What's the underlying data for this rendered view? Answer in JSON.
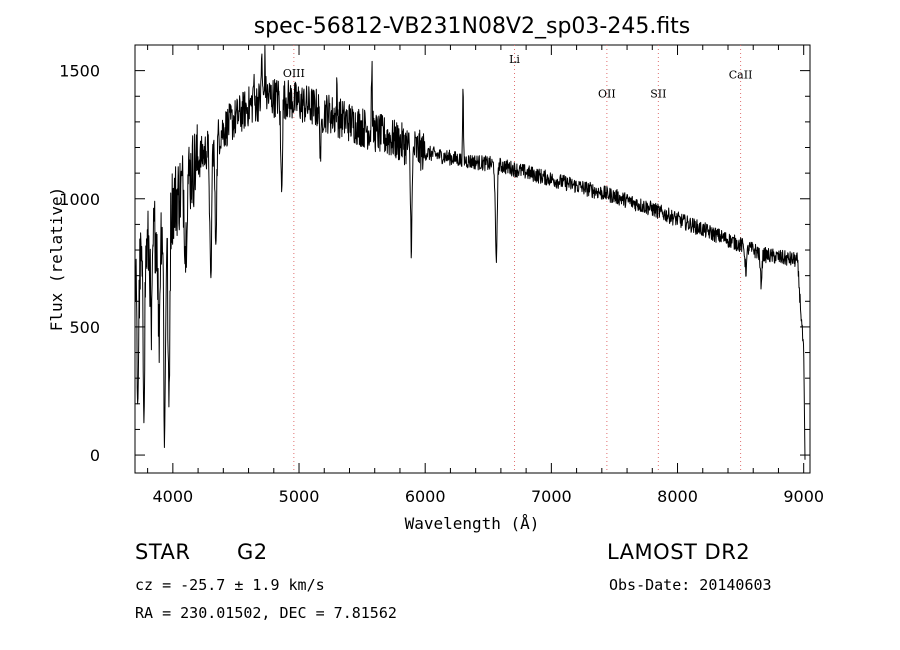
{
  "chart_data": {
    "type": "line",
    "title": "spec-56812-VB231N08V2_sp03-245.fits",
    "xlabel": "Wavelength (Å)",
    "ylabel": "Flux (relative)",
    "xlim": [
      3700,
      9050
    ],
    "ylim": [
      -70,
      1600
    ],
    "xticks": [
      4000,
      5000,
      6000,
      7000,
      8000,
      9000
    ],
    "yticks": [
      0,
      500,
      1000,
      1500
    ],
    "xticklabels": [
      "4000",
      "5000",
      "6000",
      "7000",
      "8000",
      "9000"
    ],
    "yticklabels": [
      "0",
      "500",
      "1000",
      "1500"
    ],
    "lines": [
      {
        "name": "OIII",
        "x": 4959,
        "label_y": 1475
      },
      {
        "name": "Li",
        "x": 6708,
        "label_y": 1530
      },
      {
        "name": "OII",
        "x": 7440,
        "label_y": 1395
      },
      {
        "name": "SII",
        "x": 7848,
        "label_y": 1395
      },
      {
        "name": "CaII",
        "x": 8500,
        "label_y": 1470
      }
    ],
    "continuum": [
      [
        3700,
        700
      ],
      [
        3850,
        860
      ],
      [
        4000,
        980
      ],
      [
        4200,
        1150
      ],
      [
        4400,
        1270
      ],
      [
        4600,
        1360
      ],
      [
        4750,
        1400
      ],
      [
        4900,
        1390
      ],
      [
        5100,
        1360
      ],
      [
        5400,
        1300
      ],
      [
        5700,
        1240
      ],
      [
        6000,
        1180
      ],
      [
        6300,
        1150
      ],
      [
        6600,
        1130
      ],
      [
        6900,
        1090
      ],
      [
        7200,
        1050
      ],
      [
        7500,
        1010
      ],
      [
        7800,
        960
      ],
      [
        8100,
        900
      ],
      [
        8400,
        840
      ],
      [
        8700,
        780
      ],
      [
        8950,
        760
      ],
      [
        9000,
        400
      ],
      [
        9010,
        -30
      ]
    ],
    "dips": [
      [
        3722,
        -480
      ],
      [
        3770,
        -520
      ],
      [
        3830,
        -400
      ],
      [
        3890,
        -420
      ],
      [
        3935,
        -850
      ],
      [
        3968,
        -780
      ],
      [
        4101,
        -260
      ],
      [
        4300,
        -560
      ],
      [
        4340,
        -380
      ],
      [
        4861,
        -330
      ],
      [
        5172,
        -160
      ],
      [
        5890,
        -360
      ],
      [
        6563,
        -380
      ],
      [
        8542,
        -90
      ],
      [
        8662,
        -110
      ]
    ],
    "spikes": [
      [
        4640,
        90
      ],
      [
        4705,
        180
      ],
      [
        4730,
        150
      ],
      [
        5300,
        90
      ],
      [
        5577,
        260
      ],
      [
        6300,
        260
      ]
    ],
    "noise_points": 1800,
    "seed": 56812
  },
  "info": {
    "class_label": "STAR",
    "subclass_label": "G2",
    "survey_label": "LAMOST DR2",
    "cz_label": "cz = -25.7 ± 1.9 km/s",
    "obsdate_label": "Obs-Date: 20140603",
    "radec_label": "RA = 230.01502, DEC =   7.81562"
  }
}
